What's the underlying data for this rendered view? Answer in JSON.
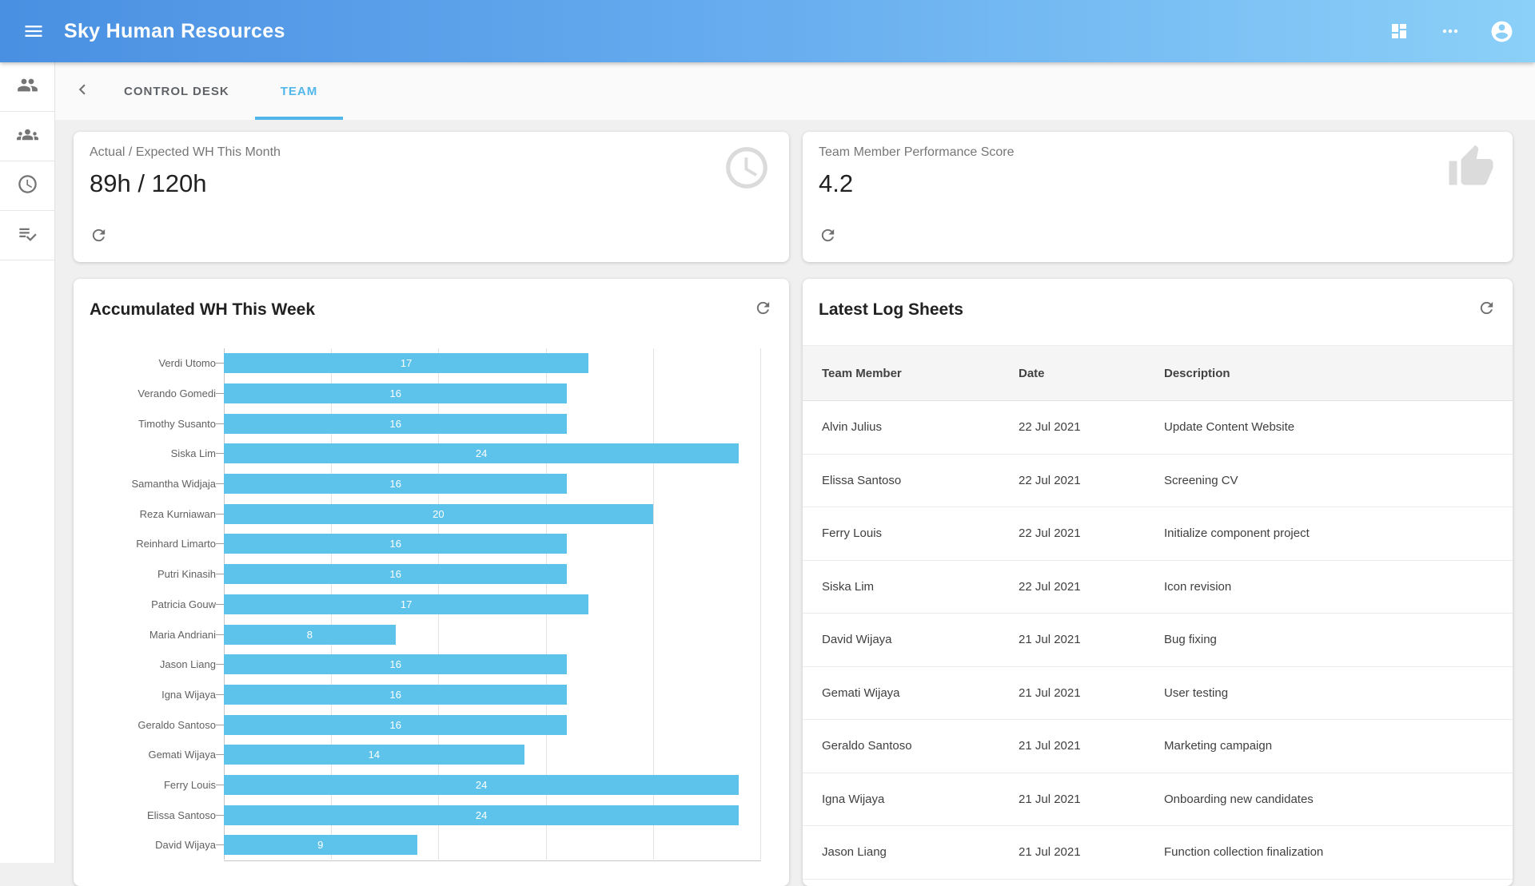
{
  "appbar": {
    "title": "Sky Human Resources",
    "icons": [
      "menu",
      "dashboard-grid",
      "more-options",
      "account-circle"
    ]
  },
  "sidebar": {
    "items": [
      {
        "icon": "people"
      },
      {
        "icon": "groups"
      },
      {
        "icon": "clock"
      },
      {
        "icon": "playlist-check"
      }
    ]
  },
  "tabs": {
    "back_icon": "chevron-left",
    "items": [
      {
        "label": "CONTROL DESK",
        "active": false
      },
      {
        "label": "TEAM",
        "active": true
      }
    ]
  },
  "stats": [
    {
      "title": "Actual / Expected WH This Month",
      "value": "89h / 120h",
      "watermark_icon": "clock",
      "action_icon": "refresh"
    },
    {
      "title": "Team Member Performance Score",
      "value": "4.2",
      "watermark_icon": "thumb-up",
      "action_icon": "refresh"
    }
  ],
  "chart_panel": {
    "title": "Accumulated WH This Week",
    "action_icon": "refresh"
  },
  "chart_data": {
    "type": "bar",
    "orientation": "horizontal",
    "title": "Accumulated WH This Week",
    "categories": [
      "Verdi Utomo",
      "Verando Gomedi",
      "Timothy Susanto",
      "Siska Lim",
      "Samantha Widjaja",
      "Reza Kurniawan",
      "Reinhard Limarto",
      "Putri Kinasih",
      "Patricia Gouw",
      "Maria Andriani",
      "Jason Liang",
      "Igna Wijaya",
      "Geraldo Santoso",
      "Gemati Wijaya",
      "Ferry Louis",
      "Elissa Santoso",
      "David Wijaya"
    ],
    "values": [
      17,
      16,
      16,
      24,
      16,
      20,
      16,
      16,
      17,
      8,
      16,
      16,
      16,
      14,
      24,
      24,
      9
    ],
    "xlabel": "",
    "ylabel": "",
    "xlim": [
      0,
      25
    ],
    "gridline_step": 5,
    "grid": true,
    "bar_color": "#5ec3eb",
    "value_labels": "inside-center-white"
  },
  "log_sheets": {
    "title": "Latest Log Sheets",
    "action_icon": "refresh",
    "columns": [
      "Team Member",
      "Date",
      "Description"
    ],
    "rows": [
      {
        "member": "Alvin Julius",
        "date": "22 Jul 2021",
        "description": "Update Content Website"
      },
      {
        "member": "Elissa Santoso",
        "date": "22 Jul 2021",
        "description": "Screening CV"
      },
      {
        "member": "Ferry Louis",
        "date": "22 Jul 2021",
        "description": "Initialize component project"
      },
      {
        "member": "Siska Lim",
        "date": "22 Jul 2021",
        "description": "Icon revision"
      },
      {
        "member": "David Wijaya",
        "date": "21 Jul 2021",
        "description": "Bug fixing"
      },
      {
        "member": "Gemati Wijaya",
        "date": "21 Jul 2021",
        "description": "User testing"
      },
      {
        "member": "Geraldo Santoso",
        "date": "21 Jul 2021",
        "description": "Marketing campaign"
      },
      {
        "member": "Igna Wijaya",
        "date": "21 Jul 2021",
        "description": "Onboarding new candidates"
      },
      {
        "member": "Jason Liang",
        "date": "21 Jul 2021",
        "description": "Function collection finalization"
      }
    ]
  },
  "colors": {
    "appbar_gradient_start": "#4a90e2",
    "appbar_gradient_end": "#8bd0f8",
    "accent": "#51b7eb",
    "bar": "#5ec3eb",
    "background": "#f0f0f0"
  }
}
